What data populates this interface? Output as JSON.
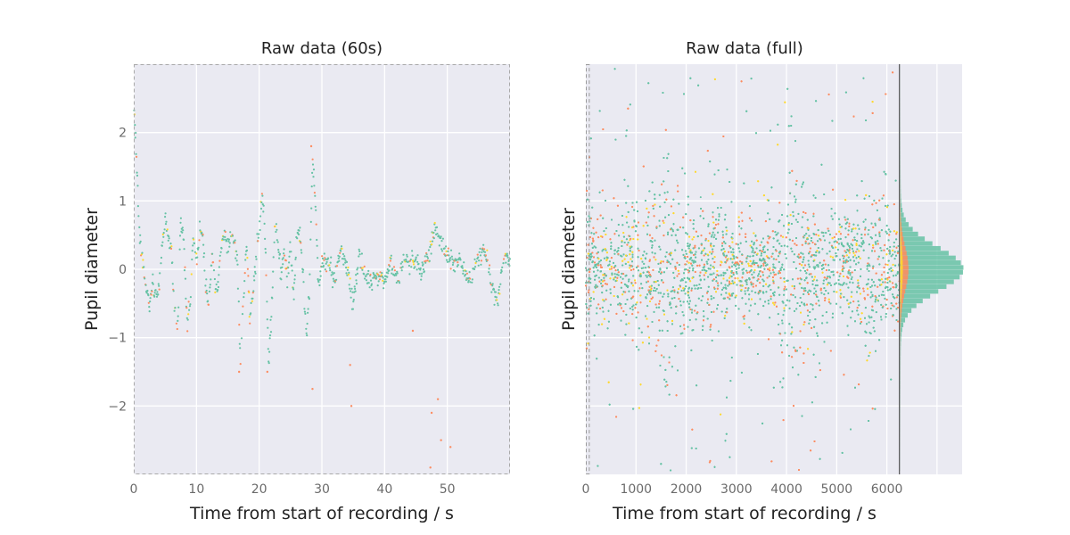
{
  "chart_data": [
    {
      "type": "scatter",
      "title": "Raw data (60s)",
      "xlabel": "Time from start of recording / s",
      "ylabel": "Pupil diameter",
      "xlim": [
        0,
        60
      ],
      "ylim": [
        -3,
        3
      ],
      "xticks": [
        0,
        10,
        20,
        30,
        40,
        50
      ],
      "yticks": [
        -2,
        -1,
        0,
        1,
        2
      ],
      "grid": true,
      "series_colors": [
        "#66c2a5",
        "#fc8d62",
        "#ffd92f"
      ],
      "trace": [
        [
          0,
          2.5
        ],
        [
          0.3,
          1.9
        ],
        [
          0.6,
          1.2
        ],
        [
          1,
          0.3
        ],
        [
          1.5,
          0.1
        ],
        [
          2,
          -0.3
        ],
        [
          2.5,
          -0.5
        ],
        [
          3,
          -0.2
        ],
        [
          3.5,
          -0.4
        ],
        [
          4,
          -0.3
        ],
        [
          4.5,
          0.3
        ],
        [
          5,
          0.7
        ],
        [
          5.5,
          0.5
        ],
        [
          6,
          0.3
        ],
        [
          6.5,
          -0.6
        ],
        [
          7,
          -0.9
        ],
        [
          7.5,
          0.7
        ],
        [
          8,
          0.4
        ],
        [
          8.5,
          -0.8
        ],
        [
          9,
          -0.5
        ],
        [
          9.5,
          0.5
        ],
        [
          10,
          0.1
        ],
        [
          10.5,
          0.6
        ],
        [
          11,
          0.5
        ],
        [
          11.5,
          -0.3
        ],
        [
          12,
          -0.6
        ],
        [
          12.5,
          0.3
        ],
        [
          13,
          -0.3
        ],
        [
          13.5,
          -0.2
        ],
        [
          14,
          0.4
        ],
        [
          14.5,
          0.5
        ],
        [
          15,
          0.3
        ],
        [
          15.5,
          0.55
        ],
        [
          16,
          0.4
        ],
        [
          16.5,
          0.1
        ],
        [
          17,
          -1.3
        ],
        [
          17.5,
          -0.5
        ],
        [
          18,
          0.4
        ],
        [
          18.5,
          -0.7
        ],
        [
          19,
          -0.4
        ],
        [
          19.5,
          0.2
        ],
        [
          20,
          0.5
        ],
        [
          20.5,
          1.1
        ],
        [
          21,
          0.4
        ],
        [
          21.5,
          -1.4
        ],
        [
          22,
          -0.6
        ],
        [
          22.5,
          0.6
        ],
        [
          23,
          0.4
        ],
        [
          23.5,
          -0.1
        ],
        [
          24,
          0.3
        ],
        [
          24.5,
          -0.2
        ],
        [
          25,
          0.4
        ],
        [
          25.5,
          -0.4
        ],
        [
          26,
          0.5
        ],
        [
          26.5,
          0.6
        ],
        [
          27,
          -0.1
        ],
        [
          27.5,
          -1.0
        ],
        [
          28,
          -0.3
        ],
        [
          28.5,
          1.6
        ],
        [
          29,
          0.9
        ],
        [
          29.5,
          -0.4
        ],
        [
          30,
          0.2
        ],
        [
          31,
          0.1
        ],
        [
          32,
          -0.2
        ],
        [
          33,
          0.3
        ],
        [
          34,
          0.0
        ],
        [
          35,
          -0.5
        ],
        [
          36,
          0.2
        ],
        [
          37,
          -0.1
        ],
        [
          38,
          -0.2
        ],
        [
          39,
          -0.1
        ],
        [
          40,
          -0.2
        ],
        [
          41,
          0.1
        ],
        [
          42,
          -0.2
        ],
        [
          43,
          0.1
        ],
        [
          44,
          0.05
        ],
        [
          45,
          0.1
        ],
        [
          46,
          -0.05
        ],
        [
          47,
          0.2
        ],
        [
          48,
          0.6
        ],
        [
          49,
          0.4
        ],
        [
          50,
          0.2
        ],
        [
          51,
          0.1
        ],
        [
          52,
          0.1
        ],
        [
          53,
          -0.1
        ],
        [
          54,
          -0.1
        ],
        [
          55,
          0.2
        ],
        [
          56,
          0.3
        ],
        [
          57,
          -0.2
        ],
        [
          58,
          -0.5
        ],
        [
          59,
          0.2
        ],
        [
          60,
          0.1
        ]
      ],
      "outliers": [
        [
          16.8,
          -1.5
        ],
        [
          21.3,
          -1.5
        ],
        [
          28.3,
          1.8
        ],
        [
          28.5,
          -1.75
        ],
        [
          34.5,
          -1.4
        ],
        [
          34.7,
          -2.0
        ],
        [
          47.5,
          -2.1
        ],
        [
          48.5,
          -1.9
        ],
        [
          49,
          -2.5
        ],
        [
          50.5,
          -2.6
        ],
        [
          47.3,
          -2.9
        ],
        [
          44.5,
          -0.9
        ]
      ]
    },
    {
      "type": "scatter",
      "title": "Raw data (full)",
      "xlabel": "Time from start of recording / s",
      "ylabel": "Pupil diameter",
      "xlim": [
        0,
        7500
      ],
      "ylim": [
        -3,
        3
      ],
      "xticks": [
        0,
        1000,
        2000,
        3000,
        4000,
        5000,
        6000
      ],
      "grid": true,
      "series_colors": [
        "#66c2a5",
        "#fc8d62",
        "#ffd92f"
      ],
      "highlight_window": [
        0,
        60
      ],
      "recording_end": 6250,
      "marginal_histogram": {
        "center": 0,
        "peak": 1.0
      }
    }
  ]
}
